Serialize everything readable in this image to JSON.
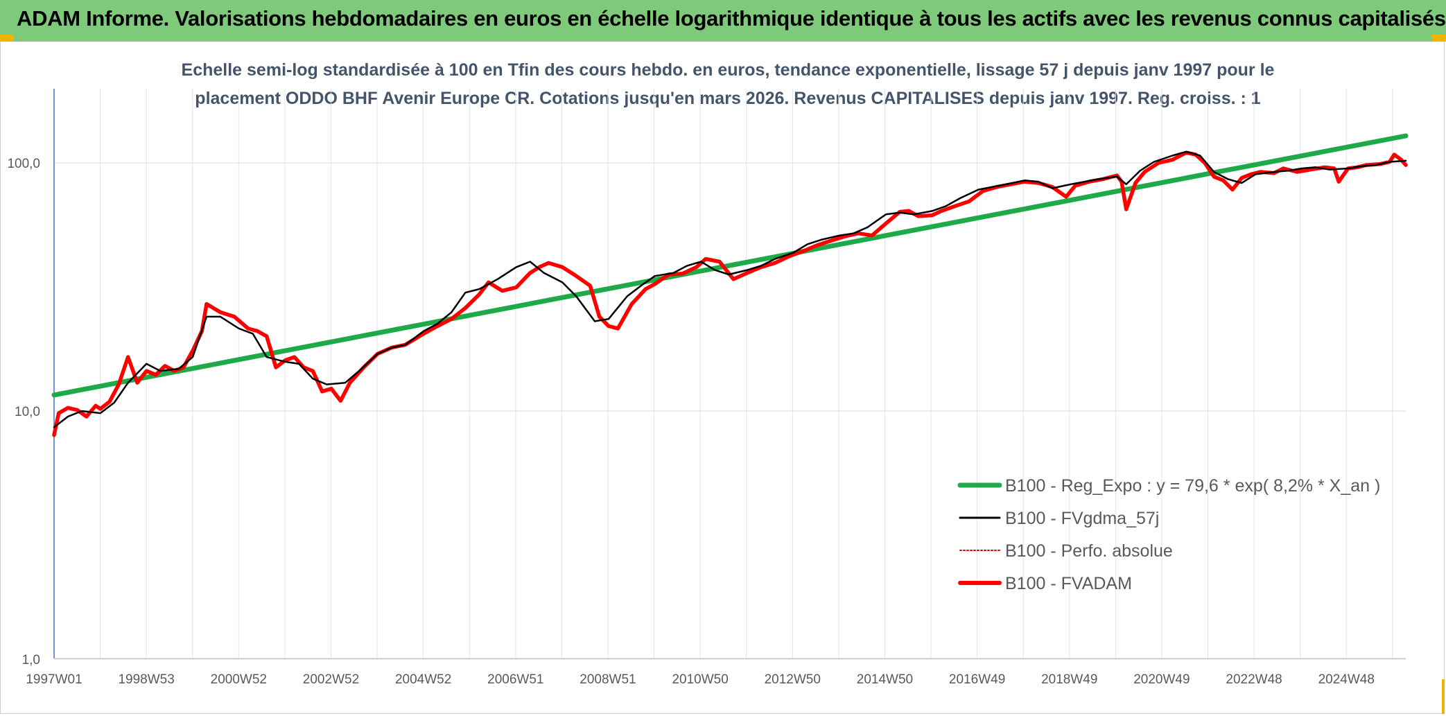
{
  "header": {
    "title": "ADAM Informe. Valorisations hebdomadaires en euros en échelle logarithmique identique à tous les actifs avec les revenus connus capitalisés"
  },
  "chart_data": {
    "type": "line",
    "title_line1": "Echelle semi-log standardisée à 100 en Tfin des cours hebdo. en euros, tendance exponentielle, lissage 57 j depuis janv 1997 pour le",
    "title_line2": "placement ODDO BHF Avenir Europe CR. Cotations jusqu'en mars 2026. Revenus CAPITALISES depuis janv 1997. Reg. croiss. : 1",
    "y_scale": "log",
    "ylim": [
      1,
      200
    ],
    "y_ticks": [
      "1,0",
      "10,0",
      "100,0"
    ],
    "x_range": [
      1997.0,
      2026.25
    ],
    "x_ticks": [
      "1997W01",
      "1998W53",
      "2000W52",
      "2002W52",
      "2004W52",
      "2006W51",
      "2008W51",
      "2010W50",
      "2012W50",
      "2014W50",
      "2016W49",
      "2018W49",
      "2020W49",
      "2022W48",
      "2024W48"
    ],
    "grid": "vertical-and-horizontal",
    "legend_position": "right",
    "colors": {
      "regression": "#1faa4a",
      "smoothed": "#000000",
      "absolute": "#e00000",
      "fvadam": "#ff0000"
    },
    "series": [
      {
        "name": "B100 - Reg_Expo : y = 79,6 * exp( 8,2% *  X_an )",
        "key": "regression",
        "x": [
          1997.0,
          2026.25
        ],
        "y": [
          11.6,
          128.5
        ]
      },
      {
        "name": "B100 - FVgdma_57j",
        "key": "smoothed",
        "x": [
          1997.0,
          1997.3,
          1997.6,
          1998.0,
          1998.3,
          1998.6,
          1999.0,
          1999.3,
          1999.7,
          2000.0,
          2000.3,
          2000.6,
          2001.0,
          2001.3,
          2001.6,
          2002.0,
          2002.3,
          2002.6,
          2002.9,
          2003.3,
          2003.6,
          2004.0,
          2004.3,
          2004.6,
          2005.0,
          2005.3,
          2005.6,
          2005.9,
          2006.2,
          2006.6,
          2007.0,
          2007.3,
          2007.6,
          2008.0,
          2008.3,
          2008.7,
          2009.0,
          2009.4,
          2009.7,
          2010.0,
          2010.4,
          2010.7,
          2011.0,
          2011.3,
          2011.6,
          2012.0,
          2012.3,
          2012.6,
          2013.0,
          2013.3,
          2013.6,
          2014.0,
          2014.3,
          2014.6,
          2015.0,
          2015.3,
          2015.6,
          2016.0,
          2016.3,
          2016.6,
          2017.0,
          2017.3,
          2017.6,
          2018.0,
          2018.3,
          2018.6,
          2019.0,
          2019.3,
          2019.6,
          2020.0,
          2020.2,
          2020.5,
          2020.8,
          2021.2,
          2021.5,
          2021.8,
          2022.1,
          2022.4,
          2022.7,
          2023.0,
          2023.4,
          2023.7,
          2024.0,
          2024.3,
          2024.6,
          2025.0,
          2025.3,
          2025.6,
          2025.9,
          2026.25
        ],
        "y": [
          8.6,
          9.5,
          10.0,
          9.8,
          10.8,
          13.0,
          15.5,
          14.5,
          14.8,
          16.5,
          24.0,
          24.0,
          21.5,
          20.5,
          16.5,
          15.8,
          15.5,
          13.5,
          12.8,
          13.0,
          14.5,
          17.0,
          18.0,
          18.5,
          21.0,
          22.5,
          25.0,
          30.0,
          31.0,
          34.0,
          38.0,
          40.0,
          36.0,
          33.0,
          29.0,
          23.0,
          23.5,
          29.0,
          32.0,
          35.0,
          36.0,
          38.5,
          40.0,
          37.0,
          35.5,
          37.0,
          38.5,
          41.0,
          43.5,
          47.0,
          49.0,
          51.0,
          52.0,
          55.0,
          62.0,
          63.0,
          62.0,
          64.0,
          67.0,
          72.0,
          78.0,
          80.0,
          82.0,
          85.0,
          84.0,
          79.0,
          82.0,
          84.0,
          86.0,
          88.0,
          82.0,
          93.0,
          101.0,
          107.0,
          111.0,
          107.0,
          92.0,
          86.0,
          83.0,
          90.0,
          92.0,
          93.0,
          95.0,
          96.0,
          94.0,
          95.0,
          97.0,
          98.0,
          101.0,
          102.0
        ]
      },
      {
        "name": "B100 - Perfo. absolue",
        "key": "absolute",
        "x": [],
        "y": []
      },
      {
        "name": "B100 - FVADAM",
        "key": "fvadam",
        "x": [
          1997.0,
          1997.1,
          1997.3,
          1997.5,
          1997.7,
          1997.9,
          1998.0,
          1998.2,
          1998.4,
          1998.6,
          1998.8,
          1999.0,
          1999.2,
          1999.4,
          1999.6,
          1999.8,
          2000.0,
          2000.2,
          2000.3,
          2000.6,
          2000.9,
          2001.2,
          2001.4,
          2001.6,
          2001.8,
          2002.0,
          2002.2,
          2002.4,
          2002.6,
          2002.8,
          2003.0,
          2003.2,
          2003.4,
          2003.7,
          2004.0,
          2004.3,
          2004.6,
          2005.0,
          2005.3,
          2005.6,
          2005.9,
          2006.2,
          2006.4,
          2006.7,
          2007.0,
          2007.3,
          2007.5,
          2007.7,
          2008.0,
          2008.3,
          2008.6,
          2008.8,
          2009.0,
          2009.2,
          2009.5,
          2009.8,
          2010.0,
          2010.3,
          2010.6,
          2010.9,
          2011.1,
          2011.4,
          2011.7,
          2012.0,
          2012.3,
          2012.6,
          2012.9,
          2013.2,
          2013.5,
          2013.8,
          2014.1,
          2014.4,
          2014.7,
          2015.0,
          2015.3,
          2015.5,
          2015.7,
          2016.0,
          2016.2,
          2016.5,
          2016.8,
          2017.1,
          2017.4,
          2017.7,
          2018.0,
          2018.3,
          2018.6,
          2018.9,
          2019.1,
          2019.4,
          2019.7,
          2020.0,
          2020.1,
          2020.2,
          2020.4,
          2020.6,
          2020.9,
          2021.2,
          2021.5,
          2021.7,
          2021.9,
          2022.1,
          2022.3,
          2022.5,
          2022.7,
          2022.9,
          2023.1,
          2023.4,
          2023.6,
          2023.9,
          2024.2,
          2024.5,
          2024.7,
          2024.8,
          2025.0,
          2025.2,
          2025.4,
          2025.7,
          2025.9,
          2026.0,
          2026.15,
          2026.25
        ],
        "y": [
          8.0,
          9.8,
          10.3,
          10.1,
          9.5,
          10.5,
          10.2,
          10.9,
          12.8,
          16.5,
          13.0,
          14.5,
          14.0,
          15.2,
          14.5,
          15.0,
          17.5,
          21.0,
          27.0,
          25.0,
          24.0,
          21.5,
          21.0,
          20.0,
          15.0,
          16.0,
          16.5,
          15.0,
          14.5,
          12.0,
          12.3,
          11.0,
          13.0,
          15.0,
          17.0,
          18.0,
          18.5,
          20.5,
          22.0,
          23.5,
          26.0,
          29.5,
          33.0,
          30.5,
          31.5,
          36.0,
          38.0,
          39.5,
          38.0,
          35.0,
          32.0,
          24.0,
          22.0,
          21.5,
          27.0,
          31.0,
          32.5,
          35.5,
          35.8,
          38.0,
          41.0,
          40.0,
          34.0,
          36.0,
          38.0,
          39.5,
          42.0,
          44.0,
          46.5,
          48.5,
          50.5,
          52.0,
          51.0,
          57.0,
          63.5,
          64.0,
          61.0,
          61.5,
          64.0,
          67.0,
          70.0,
          77.0,
          80.0,
          82.0,
          84.0,
          83.0,
          80.0,
          73.0,
          81.0,
          84.0,
          86.0,
          89.0,
          84.0,
          65.0,
          83.0,
          92.0,
          100.0,
          103.0,
          110.0,
          108.0,
          100.0,
          88.0,
          85.0,
          78.0,
          87.0,
          90.0,
          92.0,
          91.0,
          95.0,
          92.0,
          94.0,
          96.0,
          95.0,
          84.0,
          95.0,
          96.0,
          98.0,
          99.0,
          101.0,
          108.0,
          103.0,
          98.0
        ]
      }
    ]
  }
}
